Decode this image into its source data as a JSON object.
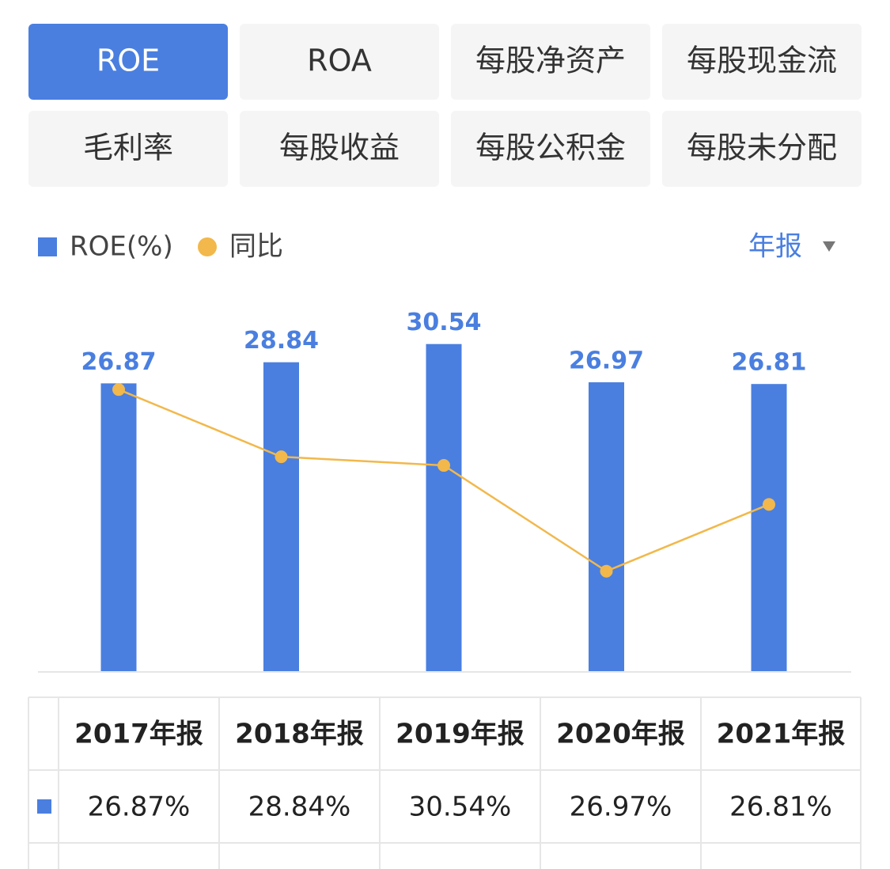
{
  "tabs": [
    {
      "label": "ROE",
      "active": true
    },
    {
      "label": "ROA",
      "active": false
    },
    {
      "label": "每股净资产",
      "active": false
    },
    {
      "label": "每股现金流",
      "active": false
    },
    {
      "label": "毛利率",
      "active": false
    },
    {
      "label": "每股收益",
      "active": false
    },
    {
      "label": "每股公积金",
      "active": false
    },
    {
      "label": "每股未分配",
      "active": false
    }
  ],
  "period_selector": "年报",
  "chart_data": {
    "type": "bar",
    "categories": [
      "2017年报",
      "2018年报",
      "2019年报",
      "2020年报",
      "2021年报"
    ],
    "ylim": [
      0,
      36.8
    ],
    "y2lim": [
      -28.3,
      37.2
    ],
    "grid": false,
    "series": [
      {
        "name": "ROE(%)",
        "color": "#4a7fe0",
        "values": [
          26.87,
          28.84,
          30.54,
          26.97,
          26.81
        ],
        "value_labels": [
          "26.87%",
          "28.84%",
          "30.54%",
          "26.97%",
          "26.81%"
        ]
      },
      {
        "name": "同比",
        "color": "#f2b84b",
        "type": "line",
        "axis": "y2",
        "values": [
          18.5,
          7.33,
          5.89,
          -11.69,
          -0.59
        ]
      }
    ]
  }
}
